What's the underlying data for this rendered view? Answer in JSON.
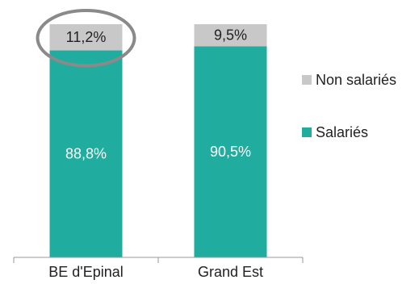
{
  "chart_data": {
    "type": "bar",
    "stacked": true,
    "normalized": true,
    "categories": [
      "BE d'Epinal",
      "Grand Est"
    ],
    "series": [
      {
        "name": "Salariés",
        "values": [
          88.8,
          90.5
        ],
        "labels": [
          "88,8%",
          "90,5%"
        ],
        "color": "#20ada0",
        "label_color": "#ffffff"
      },
      {
        "name": "Non salariés",
        "values": [
          11.2,
          9.5
        ],
        "labels": [
          "11,2%",
          "9,5%"
        ],
        "color": "#c8c8c8",
        "label_color": "#222222"
      }
    ],
    "ylim": [
      0,
      100
    ],
    "grid": false,
    "legend_position": "right",
    "highlight": {
      "category": "BE d'Epinal",
      "series": "Non salariés",
      "shape": "ellipse",
      "color": "#8a8a8a"
    }
  },
  "legend": {
    "items": [
      {
        "label": "Non salariés",
        "color": "#c8c8c8"
      },
      {
        "label": "Salariés",
        "color": "#20ada0"
      }
    ]
  }
}
